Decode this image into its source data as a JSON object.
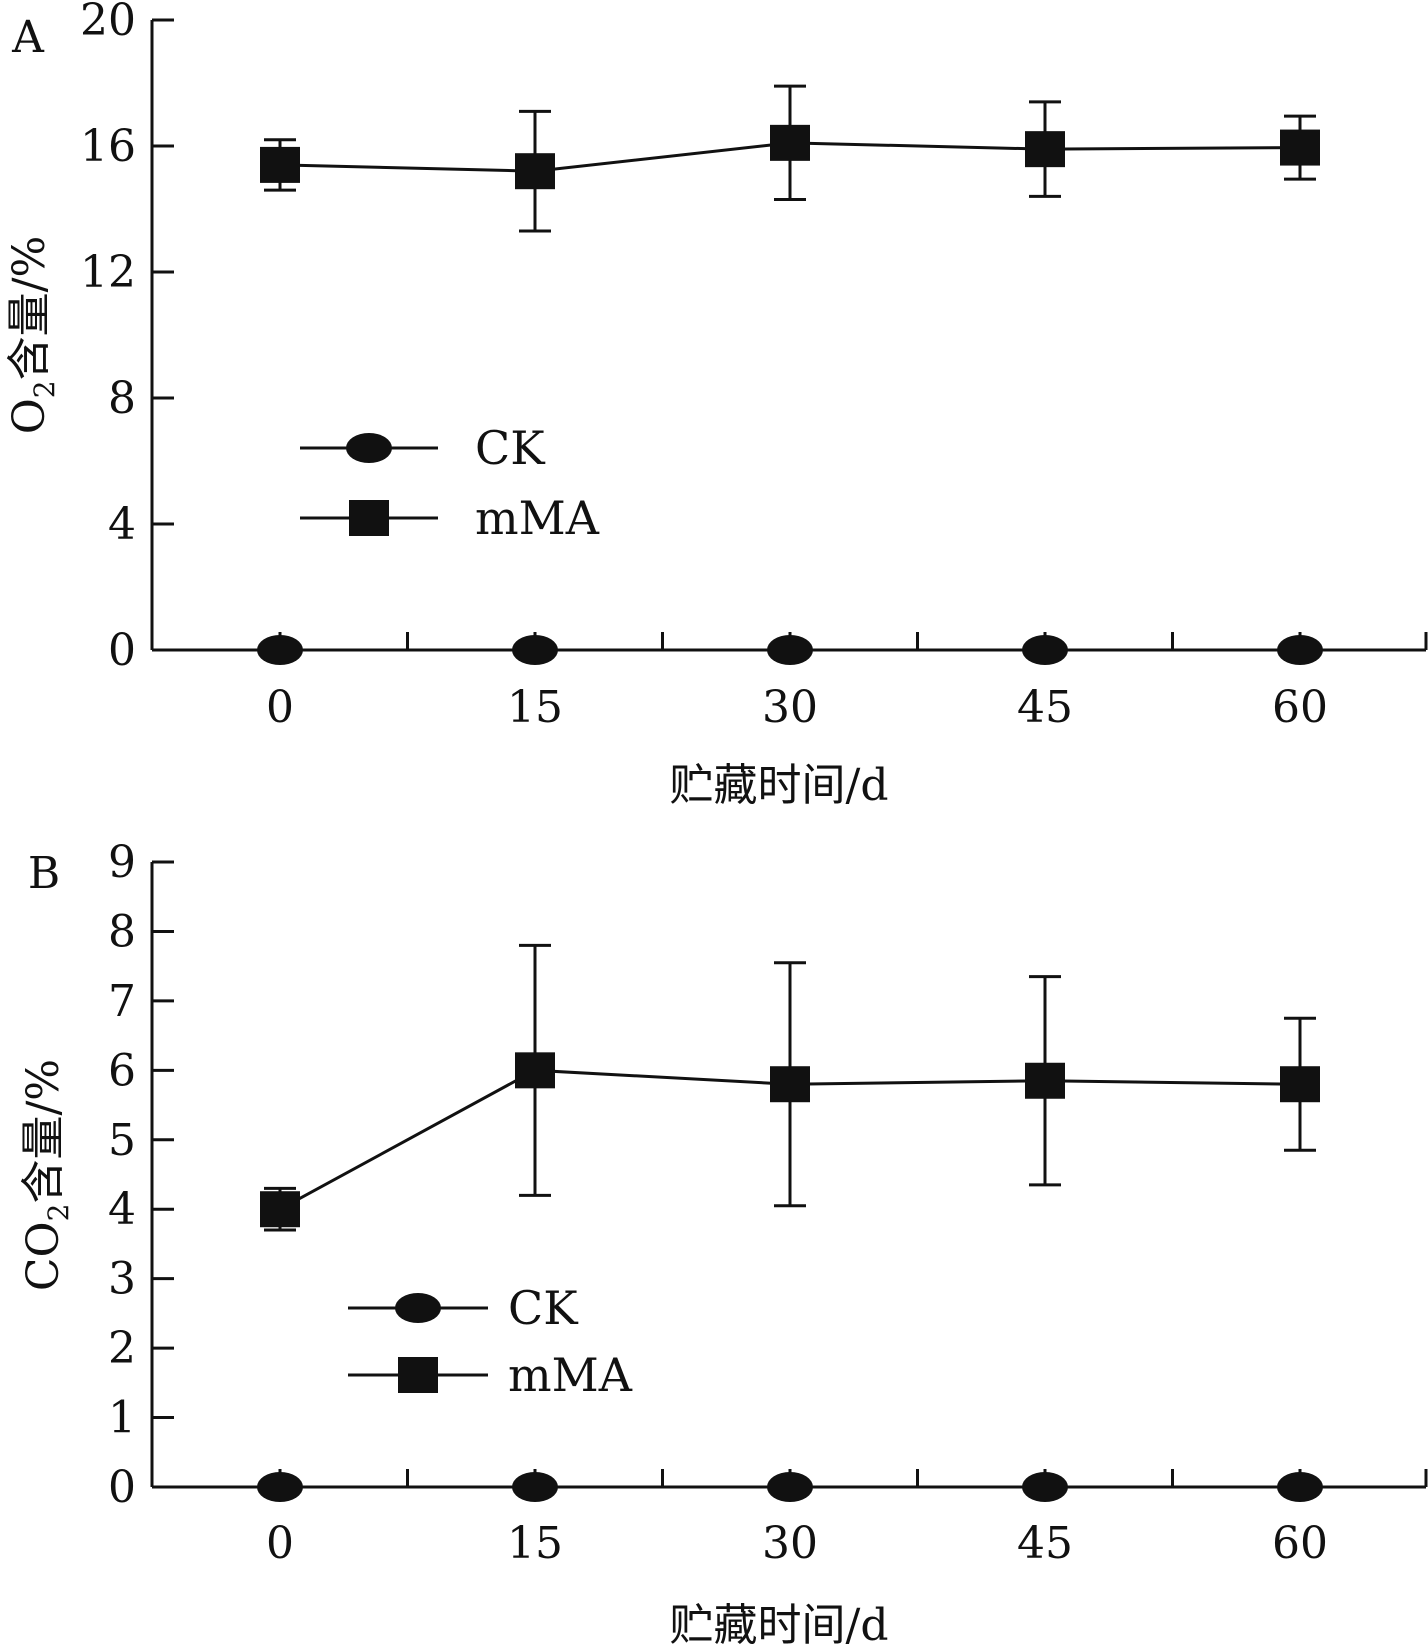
{
  "chart_data": [
    {
      "panel": "A",
      "type": "line",
      "categories": [
        "0",
        "15",
        "30",
        "45",
        "60"
      ],
      "x": [
        0,
        15,
        30,
        45,
        60
      ],
      "xlabel": "贮藏时间/d",
      "ylabel_main": "O",
      "ylabel_sub": "2",
      "ylabel_rest": "含量/%",
      "ylim": [
        0,
        20
      ],
      "yticks": [
        "0",
        "4",
        "8",
        "12",
        "16",
        "20"
      ],
      "ytick_values": [
        0,
        4,
        8,
        12,
        16,
        20
      ],
      "grid": false,
      "legend_placement": "center-left",
      "series": [
        {
          "name": "CK",
          "marker": "ellipse",
          "values": [
            0,
            0,
            0,
            0,
            0
          ],
          "errors": [
            0,
            0,
            0,
            0,
            0
          ]
        },
        {
          "name": "mMA",
          "marker": "square",
          "values": [
            15.4,
            15.2,
            16.1,
            15.9,
            15.95
          ],
          "errors": [
            0.8,
            1.9,
            1.8,
            1.5,
            1.0
          ]
        }
      ]
    },
    {
      "panel": "B",
      "type": "line",
      "categories": [
        "0",
        "15",
        "30",
        "45",
        "60"
      ],
      "x": [
        0,
        15,
        30,
        45,
        60
      ],
      "xlabel": "贮藏时间/d",
      "ylabel_main": "CO",
      "ylabel_sub": "2",
      "ylabel_rest": "含量/%",
      "ylim": [
        0,
        9
      ],
      "yticks": [
        "0",
        "1",
        "2",
        "3",
        "4",
        "5",
        "6",
        "7",
        "8",
        "9"
      ],
      "ytick_values": [
        0,
        1,
        2,
        3,
        4,
        5,
        6,
        7,
        8,
        9
      ],
      "grid": false,
      "legend_placement": "lower-left",
      "series": [
        {
          "name": "CK",
          "marker": "ellipse",
          "values": [
            0,
            0,
            0,
            0,
            0
          ],
          "errors": [
            0,
            0,
            0,
            0,
            0
          ]
        },
        {
          "name": "mMA",
          "marker": "square",
          "values": [
            4.0,
            6.0,
            5.8,
            5.85,
            5.8
          ],
          "errors": [
            0.3,
            1.8,
            1.75,
            1.5,
            0.95
          ]
        }
      ]
    }
  ]
}
